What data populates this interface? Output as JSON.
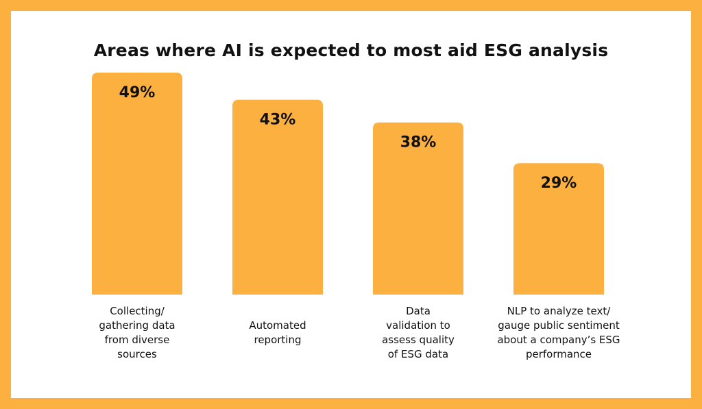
{
  "chart_data": {
    "type": "bar",
    "title": "Areas where AI is expected to most aid ESG analysis",
    "categories": [
      "Collecting/\ngathering data\nfrom diverse\nsources",
      "Automated\nreporting",
      "Data\nvalidation to\nassess quality\nof ESG data",
      "NLP to analyze text/\ngauge public sentiment\nabout a company’s ESG\nperformance"
    ],
    "values": [
      49,
      43,
      38,
      29
    ],
    "value_labels": [
      "49%",
      "43%",
      "38%",
      "29%"
    ],
    "xlabel": "",
    "ylabel": "",
    "ylim": [
      0,
      49
    ],
    "grid": false,
    "bar_color": "#FBB040"
  },
  "colors": {
    "background": "#FBB040",
    "panel": "#FFFFFF",
    "text": "#111111"
  }
}
